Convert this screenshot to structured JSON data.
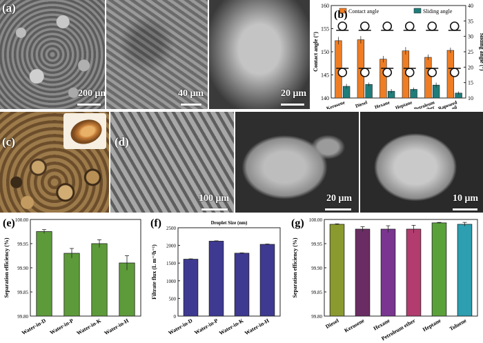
{
  "figure": {
    "colors": {
      "orange": "#ef7d24",
      "teal": "#1f7d7a",
      "green": "#5d9b3a",
      "navy": "#3e3a92",
      "border": "#666666"
    },
    "sem_panels": [
      {
        "label": "(a)",
        "scale": "200 μm"
      },
      {
        "label": "",
        "scale": "40 μm"
      },
      {
        "label": "",
        "scale": "20 μm"
      },
      {
        "label": "(c)",
        "scale": ""
      },
      {
        "label": "(d)",
        "scale": "100 μm"
      },
      {
        "label": "",
        "scale": "20 μm"
      },
      {
        "label": "",
        "scale": "10 μm"
      }
    ]
  },
  "chart_data": [
    {
      "id": "b",
      "panel_label": "(b)",
      "type": "bar",
      "categories": [
        "Kerosene",
        "Diesel",
        "Hexane",
        "Heptane",
        "Petroleum ether",
        "Rapeseed oil"
      ],
      "series": [
        {
          "name": "Contact angle",
          "axis": "left",
          "color": "#ef7d24",
          "values": [
            152.4,
            152.6,
            148.4,
            150.2,
            148.8,
            150.3
          ],
          "errors": [
            0.8,
            0.8,
            0.7,
            0.8,
            0.6,
            0.6
          ]
        },
        {
          "name": "Sliding angle",
          "axis": "right",
          "color": "#1f7d7a",
          "values": [
            13.8,
            14.4,
            12.2,
            12.8,
            14.2,
            11.6
          ],
          "errors": [
            0.8,
            0.6,
            0.7,
            0.6,
            0.8,
            0.5
          ]
        }
      ],
      "ylabel": "Contact angle (°)",
      "ylim": [
        140,
        160
      ],
      "yticks": [
        140,
        145,
        150,
        155,
        160
      ],
      "y2label": "Sliding angle (°)",
      "y2lim": [
        10,
        40
      ],
      "y2ticks": [
        10,
        15,
        20,
        25,
        30,
        35,
        40
      ],
      "legend": "top"
    },
    {
      "id": "e",
      "panel_label": "(e)",
      "type": "bar",
      "categories": [
        "Water-in-D",
        "Water-in-P",
        "Water-in-K",
        "Water-in-H"
      ],
      "values": [
        99.975,
        99.93,
        99.95,
        99.91
      ],
      "errors": [
        0.004,
        0.01,
        0.008,
        0.015
      ],
      "color": "#5d9b3a",
      "ylabel": "Separation efficiency (%)",
      "ylim": [
        99.8,
        100.0
      ],
      "yticks": [
        "99.80",
        "99.85",
        "99.90",
        "99.95",
        "100.00"
      ],
      "ytick_values": [
        99.8,
        99.85,
        99.9,
        99.95,
        100.0
      ]
    },
    {
      "id": "f",
      "panel_label": "(f)",
      "type": "bar",
      "title": "Droplet Size (nm)",
      "categories": [
        "Water-in-D",
        "Water-in-P",
        "Water-in-K",
        "Water-in-H"
      ],
      "values": [
        1610,
        2120,
        1780,
        2030
      ],
      "errors": [
        10,
        10,
        10,
        10
      ],
      "color": "#3e3a92",
      "ylabel": "Filtrate flux (L m⁻²h⁻¹)",
      "ylim": [
        0,
        2500
      ],
      "yticks": [
        "0",
        "500",
        "1000",
        "1500",
        "2000",
        "2500"
      ],
      "ytick_values": [
        0,
        500,
        1000,
        1500,
        2000,
        2500
      ]
    },
    {
      "id": "g",
      "panel_label": "(g)",
      "type": "bar",
      "categories": [
        "Diesel",
        "Kerosene",
        "Hexane",
        "Petroleum ether",
        "Heptane",
        "Toluene"
      ],
      "values": [
        99.99,
        99.98,
        99.98,
        99.98,
        99.993,
        99.99
      ],
      "errors": [
        0.001,
        0.005,
        0.007,
        0.008,
        0.001,
        0.004
      ],
      "colors": [
        "#8a9a2e",
        "#6a2d63",
        "#7a3590",
        "#b23c6e",
        "#5aa13a",
        "#2d9fb0"
      ],
      "ylabel": "Separation efficiency (%)",
      "ylim": [
        99.8,
        100.0
      ],
      "yticks": [
        "99.80",
        "99.85",
        "99.90",
        "99.95",
        "100.00"
      ],
      "ytick_values": [
        99.8,
        99.85,
        99.9,
        99.95,
        100.0
      ]
    }
  ]
}
